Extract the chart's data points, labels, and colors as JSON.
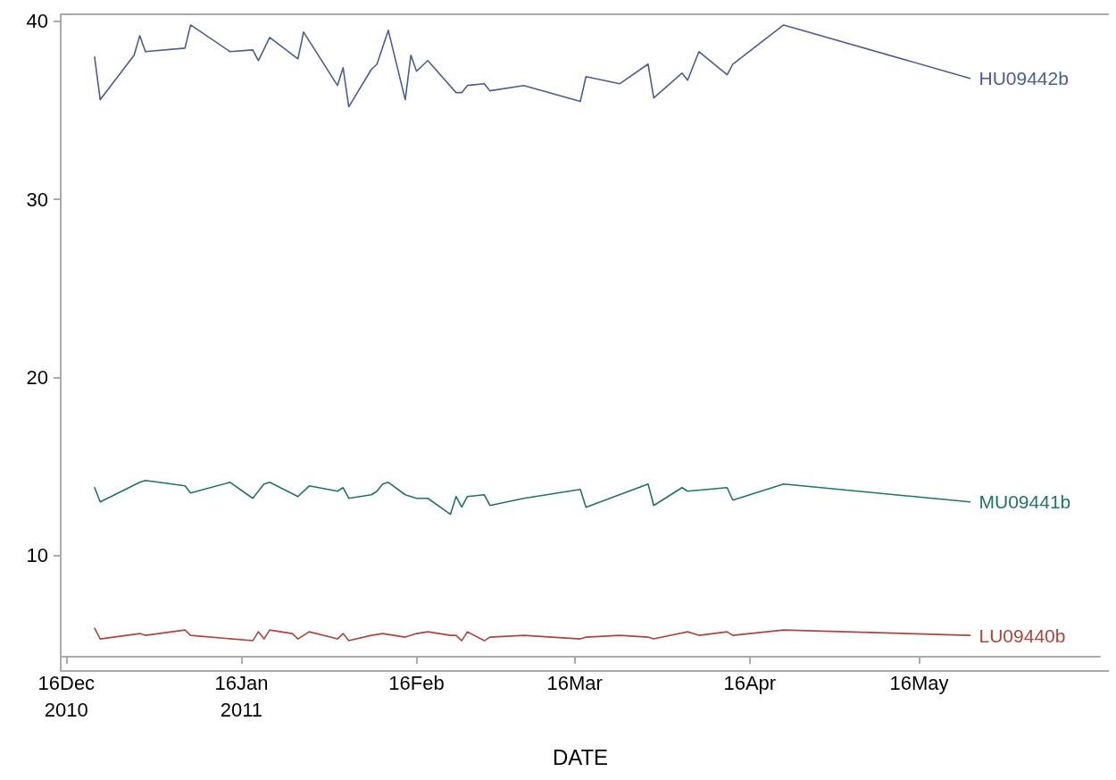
{
  "chart_data": {
    "type": "line",
    "xlabel": "DATE",
    "legend": false,
    "grid": false,
    "marker": "none",
    "line_style": "solid",
    "xlim": [
      "2010-12-15",
      "2011-06-17"
    ],
    "xticks": [
      {
        "value": "2010-12-16",
        "label": "16Dec\n2010"
      },
      {
        "value": "2011-01-16",
        "label": "16Jan\n2011"
      },
      {
        "value": "2011-02-16",
        "label": "16Feb"
      },
      {
        "value": "2011-03-16",
        "label": "16Mar"
      },
      {
        "value": "2011-04-16",
        "label": "16Apr"
      },
      {
        "value": "2011-05-16",
        "label": "16May"
      }
    ],
    "ylim": [
      4.3,
      40.4
    ],
    "yticks": [
      10,
      20,
      30,
      40
    ],
    "series": [
      {
        "name": "HU09442b",
        "color": "#4a5b9c",
        "x": [
          "2010-12-21",
          "2010-12-22",
          "2010-12-28",
          "2010-12-29",
          "2010-12-30",
          "2011-01-06",
          "2011-01-07",
          "2011-01-14",
          "2011-01-18",
          "2011-01-19",
          "2011-01-21",
          "2011-01-26",
          "2011-01-27",
          "2011-02-02",
          "2011-02-03",
          "2011-02-04",
          "2011-02-08",
          "2011-02-09",
          "2011-02-11",
          "2011-02-14",
          "2011-02-15",
          "2011-02-16",
          "2011-02-18",
          "2011-02-23",
          "2011-02-24",
          "2011-02-25",
          "2011-02-28",
          "2011-03-01",
          "2011-03-07",
          "2011-03-17",
          "2011-03-18",
          "2011-03-24",
          "2011-03-29",
          "2011-03-30",
          "2011-04-04",
          "2011-04-05",
          "2011-04-07",
          "2011-04-12",
          "2011-04-13",
          "2011-04-22",
          "2011-05-25"
        ],
        "values": [
          38.0,
          35.6,
          38.1,
          39.2,
          38.3,
          38.5,
          39.8,
          38.3,
          38.4,
          37.8,
          39.1,
          37.9,
          39.4,
          36.4,
          37.4,
          35.2,
          37.3,
          37.6,
          39.5,
          35.6,
          38.1,
          37.2,
          37.8,
          36.0,
          36.0,
          36.4,
          36.5,
          36.1,
          36.4,
          35.5,
          36.9,
          36.5,
          37.6,
          35.7,
          37.1,
          36.7,
          38.3,
          37.0,
          37.6,
          39.8,
          36.8
        ]
      },
      {
        "name": "MU09441b",
        "color": "#1e7563",
        "x": [
          "2010-12-21",
          "2010-12-22",
          "2010-12-29",
          "2010-12-30",
          "2011-01-06",
          "2011-01-07",
          "2011-01-14",
          "2011-01-18",
          "2011-01-20",
          "2011-01-21",
          "2011-01-26",
          "2011-01-28",
          "2011-02-02",
          "2011-02-03",
          "2011-02-04",
          "2011-02-08",
          "2011-02-09",
          "2011-02-10",
          "2011-02-11",
          "2011-02-14",
          "2011-02-16",
          "2011-02-18",
          "2011-02-22",
          "2011-02-23",
          "2011-02-24",
          "2011-02-25",
          "2011-02-28",
          "2011-03-01",
          "2011-03-07",
          "2011-03-17",
          "2011-03-18",
          "2011-03-29",
          "2011-03-30",
          "2011-04-04",
          "2011-04-05",
          "2011-04-12",
          "2011-04-13",
          "2011-04-22",
          "2011-05-25"
        ],
        "values": [
          13.8,
          13.0,
          14.1,
          14.2,
          13.9,
          13.5,
          14.1,
          13.2,
          14.0,
          14.1,
          13.3,
          13.9,
          13.6,
          13.8,
          13.2,
          13.4,
          13.6,
          14.0,
          14.1,
          13.4,
          13.2,
          13.2,
          12.3,
          13.3,
          12.7,
          13.3,
          13.4,
          12.8,
          13.2,
          13.7,
          12.7,
          14.0,
          12.8,
          13.8,
          13.6,
          13.8,
          13.1,
          14.0,
          13.0
        ]
      },
      {
        "name": "LU09440b",
        "color": "#b0443a",
        "x": [
          "2010-12-21",
          "2010-12-22",
          "2010-12-29",
          "2010-12-30",
          "2011-01-06",
          "2011-01-07",
          "2011-01-18",
          "2011-01-19",
          "2011-01-20",
          "2011-01-21",
          "2011-01-25",
          "2011-01-26",
          "2011-01-28",
          "2011-02-02",
          "2011-02-03",
          "2011-02-04",
          "2011-02-08",
          "2011-02-10",
          "2011-02-14",
          "2011-02-16",
          "2011-02-18",
          "2011-02-22",
          "2011-02-23",
          "2011-02-24",
          "2011-02-25",
          "2011-02-28",
          "2011-03-01",
          "2011-03-07",
          "2011-03-17",
          "2011-03-18",
          "2011-03-24",
          "2011-03-29",
          "2011-03-30",
          "2011-04-05",
          "2011-04-07",
          "2011-04-12",
          "2011-04-13",
          "2011-04-22",
          "2011-05-25"
        ],
        "values": [
          5.9,
          5.3,
          5.6,
          5.5,
          5.8,
          5.5,
          5.2,
          5.7,
          5.3,
          5.8,
          5.6,
          5.3,
          5.7,
          5.3,
          5.6,
          5.2,
          5.5,
          5.6,
          5.4,
          5.6,
          5.7,
          5.5,
          5.5,
          5.2,
          5.7,
          5.2,
          5.4,
          5.5,
          5.3,
          5.4,
          5.5,
          5.4,
          5.3,
          5.7,
          5.5,
          5.7,
          5.5,
          5.8,
          5.5
        ]
      }
    ]
  }
}
